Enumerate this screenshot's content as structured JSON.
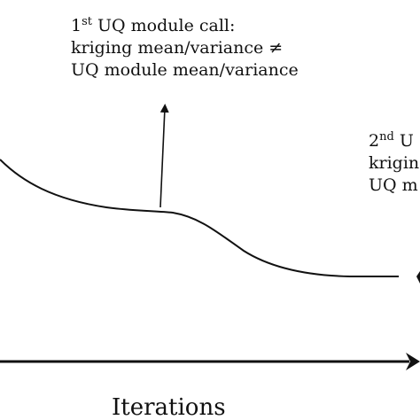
{
  "annotations": {
    "first": {
      "ordinal_number": "1",
      "ordinal_suffix": "st",
      "line1_rest": " UQ module call:",
      "line2": "kriging mean/variance ≠",
      "line3": "UQ module mean/variance"
    },
    "second": {
      "ordinal_number": "2",
      "ordinal_suffix": "nd",
      "line1_rest": " U",
      "line2": "krigin",
      "line3": "UQ m"
    }
  },
  "x_axis": {
    "label": "Iterations"
  },
  "colors": {
    "ink": "#111111",
    "background": "#ffffff"
  }
}
